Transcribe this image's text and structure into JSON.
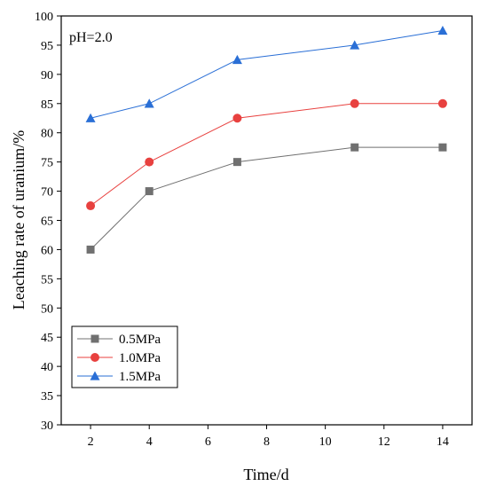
{
  "chart_data": {
    "type": "line",
    "title": "",
    "annotation": "pH=2.0",
    "xlabel": "Time/d",
    "ylabel": "Leaching rate of uranium/%",
    "x": [
      2,
      4,
      7,
      11,
      14
    ],
    "xlim": [
      1,
      15
    ],
    "ylim": [
      30,
      100
    ],
    "xticks": [
      2,
      4,
      6,
      8,
      10,
      12,
      14
    ],
    "yticks": [
      30,
      35,
      40,
      45,
      50,
      55,
      60,
      65,
      70,
      75,
      80,
      85,
      90,
      95,
      100
    ],
    "grid": false,
    "legend_position": "bottom-left",
    "series": [
      {
        "name": "0.5MPa",
        "values": [
          60,
          70,
          75,
          77.5,
          77.5
        ],
        "color": "#707070",
        "marker": "square"
      },
      {
        "name": "1.0MPa",
        "values": [
          67.5,
          75,
          82.5,
          85,
          85
        ],
        "color": "#e8413f",
        "marker": "circle"
      },
      {
        "name": "1.5MPa",
        "values": [
          82.5,
          85,
          92.5,
          95,
          97.5
        ],
        "color": "#2a6fd6",
        "marker": "triangle"
      }
    ]
  }
}
